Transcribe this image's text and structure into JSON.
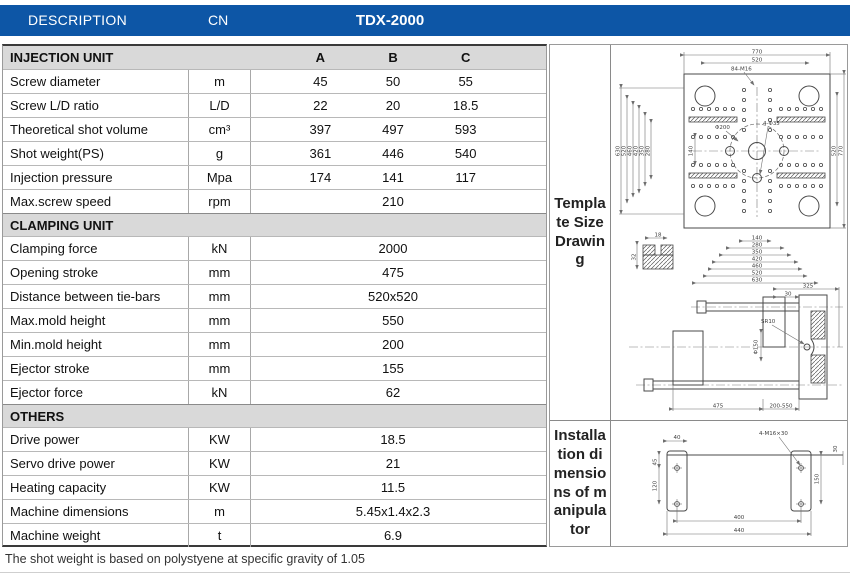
{
  "header": {
    "description": "DESCRIPTION",
    "cn": "CN",
    "model": "TDX-2000"
  },
  "table": {
    "sections": [
      {
        "title": "INJECTION UNIT",
        "columns": [
          "A",
          "B",
          "C"
        ],
        "rows": [
          {
            "label": "Screw diameter",
            "unit": "m",
            "values": [
              "45",
              "50",
              "55"
            ]
          },
          {
            "label": "Screw L/D ratio",
            "unit": "L/D",
            "values": [
              "22",
              "20",
              "18.5"
            ]
          },
          {
            "label": "Theoretical shot volume",
            "unit": "cm³",
            "values": [
              "397",
              "497",
              "593"
            ]
          },
          {
            "label": "Shot weight(PS)",
            "unit": "g",
            "values": [
              "361",
              "446",
              "540"
            ]
          },
          {
            "label": "Injection pressure",
            "unit": "Mpa",
            "values": [
              "174",
              "141",
              "117"
            ]
          },
          {
            "label": "Max.screw speed",
            "unit": "rpm",
            "values": [
              "210"
            ]
          }
        ]
      },
      {
        "title": "CLAMPING UNIT",
        "columns": [],
        "rows": [
          {
            "label": "Clamping force",
            "unit": "kN",
            "values": [
              "2000"
            ]
          },
          {
            "label": "Opening stroke",
            "unit": "mm",
            "values": [
              "475"
            ]
          },
          {
            "label": "Distance between tie-bars",
            "unit": "mm",
            "values": [
              "520x520"
            ]
          },
          {
            "label": "Max.mold height",
            "unit": "mm",
            "values": [
              "550"
            ]
          },
          {
            "label": "Min.mold height",
            "unit": "mm",
            "values": [
              "200"
            ]
          },
          {
            "label": "Ejector stroke",
            "unit": "mm",
            "values": [
              "155"
            ]
          },
          {
            "label": "Ejector force",
            "unit": "kN",
            "values": [
              "62"
            ]
          }
        ]
      },
      {
        "title": "OTHERS",
        "columns": [],
        "rows": [
          {
            "label": "Drive power",
            "unit": "KW",
            "values": [
              "18.5"
            ]
          },
          {
            "label": "Servo drive power",
            "unit": "KW",
            "values": [
              "21"
            ]
          },
          {
            "label": "Heating capacity",
            "unit": "KW",
            "values": [
              "11.5"
            ]
          },
          {
            "label": "Machine dimensions",
            "unit": "m",
            "values": [
              "5.45x1.4x2.3"
            ]
          },
          {
            "label": "Machine weight",
            "unit": "t",
            "values": [
              "6.9"
            ]
          }
        ]
      }
    ]
  },
  "footnote": "The shot weight is based on polystyene at specific gravity of 1.05",
  "drawings": {
    "template": {
      "label": "Template Size Drawing",
      "front": {
        "dim_770_top": "770",
        "dim_520_top": "520",
        "bolt_note": "84-M16",
        "circle_note": "Φ200",
        "holes_note": "4-Φ35",
        "dim_140_v": "140",
        "dim_140_bottom": "140",
        "right_dims": [
          "520",
          "770"
        ],
        "left_dims": [
          "630",
          "520",
          "460",
          "420",
          "350",
          "280"
        ],
        "bottom_dims": [
          "280",
          "350",
          "420",
          "460",
          "520",
          "630"
        ],
        "slot_w": "18",
        "slot_h": "32"
      },
      "side": {
        "dim_325": "325",
        "dim_30": "30",
        "sr_note": "SR10",
        "dia_note": "Φ150",
        "dim_475": "475",
        "dim_range": "200-550"
      }
    },
    "manipulator": {
      "label": "Installation dimensions of manipulator",
      "dims": {
        "d40": "40",
        "d45": "45",
        "d120": "120",
        "d150": "150",
        "d30": "30",
        "d400": "400",
        "d440": "440",
        "note": "4-M16×30"
      }
    }
  },
  "colors": {
    "header_blue": "#0d56a6",
    "section_gray": "#d9d9d9"
  }
}
